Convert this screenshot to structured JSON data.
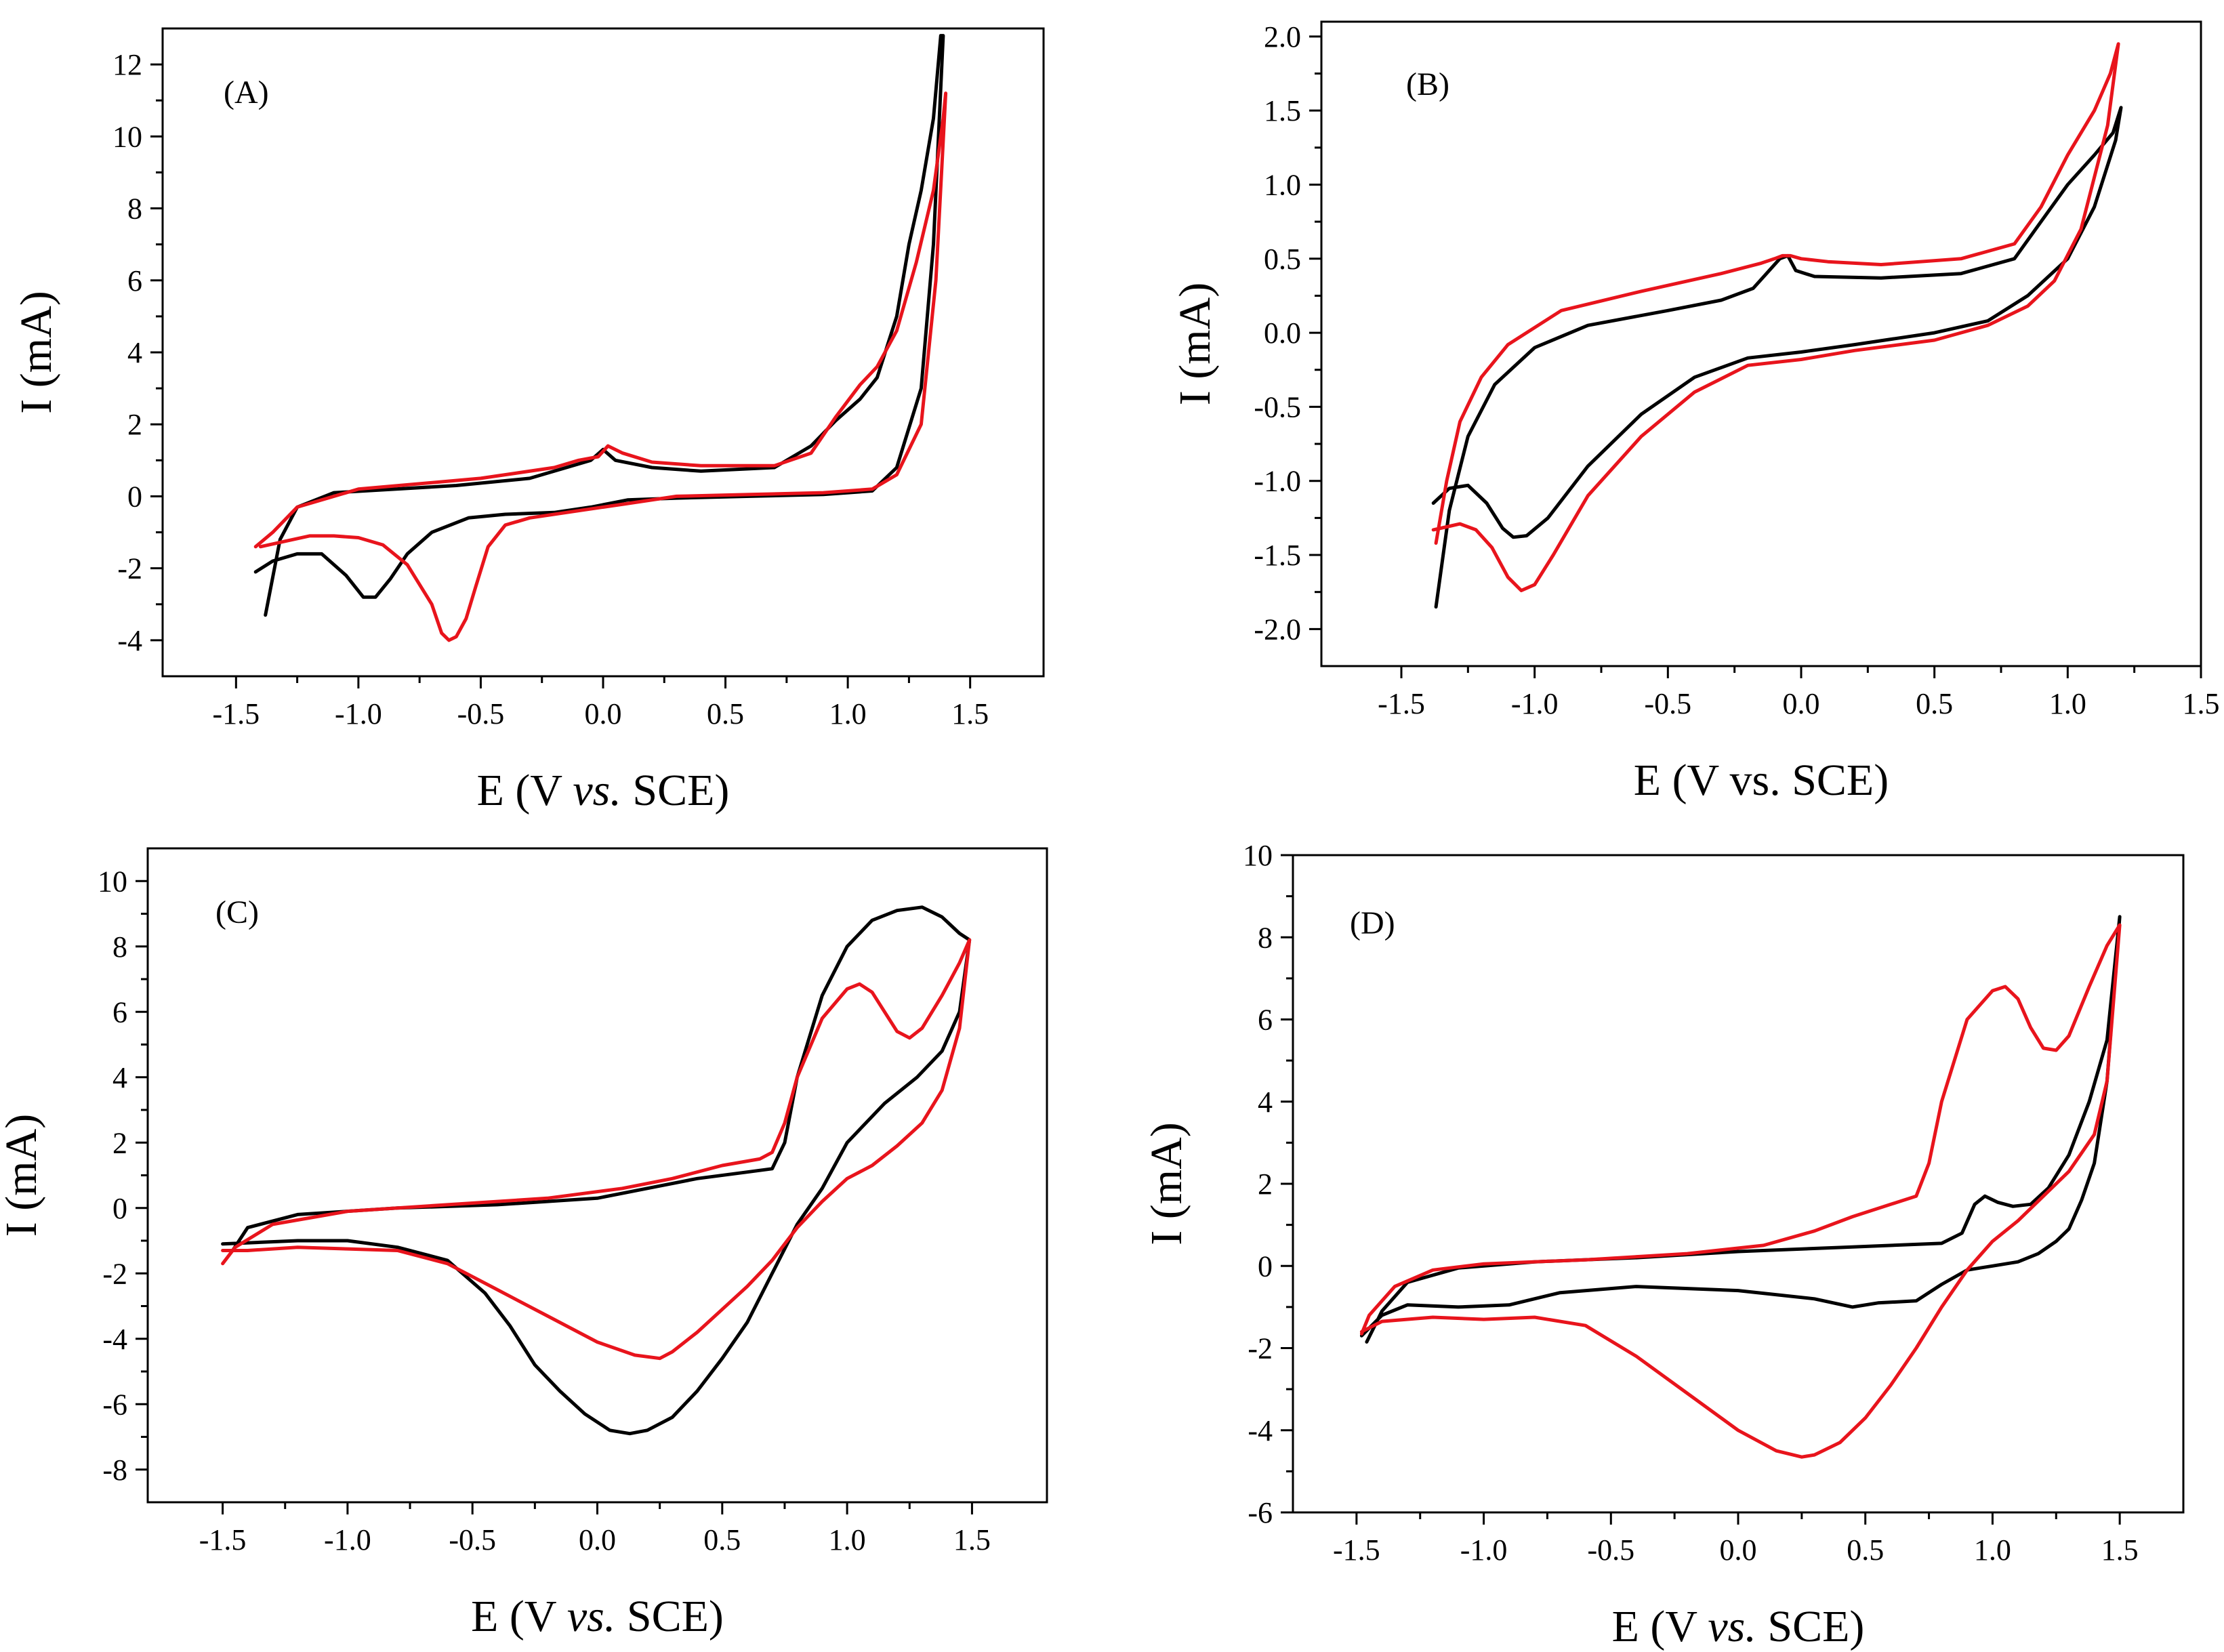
{
  "figure": {
    "colors": {
      "black": "#000000",
      "red": "#e8141c"
    }
  },
  "chart_data": [
    {
      "type": "line",
      "panel_label": "(A)",
      "xlabel_prefix": "E (V ",
      "xlabel_italic": "vs.",
      "xlabel_suffix": " SCE)",
      "ylabel": "I (mA)",
      "xlim": [
        -1.8,
        1.8
      ],
      "ylim": [
        -5,
        13
      ],
      "xticks": [
        -1.5,
        -1.0,
        -0.5,
        0.0,
        0.5,
        1.0,
        1.5
      ],
      "xtick_labels": [
        "-1.5",
        "-1.0",
        "-0.5",
        "0.0",
        "0.5",
        "1.0",
        "1.5"
      ],
      "yticks": [
        -4,
        -2,
        0,
        2,
        4,
        6,
        8,
        10,
        12
      ],
      "ytick_labels": [
        "-4",
        "-2",
        "0",
        "2",
        "4",
        "6",
        "8",
        "10",
        "12"
      ],
      "series": [
        {
          "name": "black",
          "color": "#000000",
          "x": [
            -1.38,
            -1.32,
            -1.25,
            -1.1,
            -0.6,
            -0.3,
            -0.15,
            -0.05,
            0.0,
            0.05,
            0.2,
            0.4,
            0.7,
            0.85,
            0.95,
            1.05,
            1.12,
            1.2,
            1.25,
            1.3,
            1.35,
            1.38,
            1.39,
            1.35,
            1.3,
            1.2,
            1.1,
            0.9,
            0.6,
            0.3,
            0.1,
            -0.05,
            -0.2,
            -0.4,
            -0.55,
            -0.7,
            -0.8,
            -0.87,
            -0.93,
            -0.98,
            -1.05,
            -1.15,
            -1.25,
            -1.35,
            -1.42
          ],
          "y": [
            -3.3,
            -1.2,
            -0.3,
            0.1,
            0.3,
            0.5,
            0.8,
            1.0,
            1.3,
            1.0,
            0.8,
            0.7,
            0.8,
            1.4,
            2.1,
            2.7,
            3.3,
            5.0,
            7.0,
            8.5,
            10.5,
            12.8,
            12.8,
            7.0,
            3.0,
            0.8,
            0.15,
            0.05,
            0.0,
            -0.05,
            -0.1,
            -0.3,
            -0.45,
            -0.5,
            -0.6,
            -1.0,
            -1.6,
            -2.3,
            -2.8,
            -2.8,
            -2.2,
            -1.6,
            -1.6,
            -1.8,
            -2.1
          ]
        },
        {
          "name": "red",
          "color": "#e8141c",
          "x": [
            -1.42,
            -1.35,
            -1.25,
            -1.0,
            -0.5,
            -0.2,
            -0.1,
            -0.02,
            0.02,
            0.08,
            0.2,
            0.4,
            0.7,
            0.85,
            0.95,
            1.05,
            1.12,
            1.2,
            1.28,
            1.35,
            1.39,
            1.4,
            1.36,
            1.3,
            1.2,
            1.1,
            0.9,
            0.6,
            0.3,
            0.1,
            -0.1,
            -0.3,
            -0.4,
            -0.47,
            -0.52,
            -0.56,
            -0.6,
            -0.63,
            -0.66,
            -0.7,
            -0.8,
            -0.9,
            -1.0,
            -1.1,
            -1.2,
            -1.3,
            -1.4
          ],
          "y": [
            -1.4,
            -1.0,
            -0.3,
            0.2,
            0.5,
            0.8,
            1.0,
            1.1,
            1.4,
            1.2,
            0.95,
            0.85,
            0.85,
            1.2,
            2.2,
            3.1,
            3.6,
            4.6,
            6.5,
            8.5,
            10.5,
            11.2,
            6.0,
            2.0,
            0.6,
            0.2,
            0.1,
            0.05,
            0.0,
            -0.2,
            -0.4,
            -0.6,
            -0.8,
            -1.4,
            -2.5,
            -3.4,
            -3.9,
            -4.0,
            -3.8,
            -3.0,
            -1.9,
            -1.35,
            -1.15,
            -1.1,
            -1.1,
            -1.25,
            -1.4
          ]
        }
      ]
    },
    {
      "type": "line",
      "panel_label": "(B)",
      "xlabel_prefix": "E (V vs. SCE)",
      "xlabel_italic": "",
      "xlabel_suffix": "",
      "ylabel": "I (mA)",
      "xlim": [
        -1.8,
        1.5
      ],
      "ylim": [
        -2.25,
        2.1
      ],
      "xticks": [
        -1.5,
        -1.0,
        -0.5,
        0.0,
        0.5,
        1.0,
        1.5
      ],
      "xtick_labels": [
        "-1.5",
        "-1.0",
        "-0.5",
        "0.0",
        "0.5",
        "1.0",
        "1.5"
      ],
      "yticks": [
        -2.0,
        -1.5,
        -1.0,
        -0.5,
        0.0,
        0.5,
        1.0,
        1.5,
        2.0
      ],
      "ytick_labels": [
        "-2.0",
        "-1.5",
        "-1.0",
        "-0.5",
        "0.0",
        "0.5",
        "1.0",
        "1.5",
        "2.0"
      ],
      "series": [
        {
          "name": "black",
          "color": "#000000",
          "x": [
            -1.37,
            -1.32,
            -1.25,
            -1.15,
            -1.0,
            -0.8,
            -0.5,
            -0.3,
            -0.18,
            -0.12,
            -0.08,
            -0.05,
            -0.02,
            0.05,
            0.3,
            0.6,
            0.8,
            0.9,
            1.0,
            1.1,
            1.17,
            1.2,
            1.18,
            1.1,
            1.0,
            0.85,
            0.7,
            0.5,
            0.2,
            0.0,
            -0.2,
            -0.4,
            -0.6,
            -0.8,
            -0.95,
            -1.03,
            -1.08,
            -1.12,
            -1.18,
            -1.25,
            -1.32,
            -1.38
          ],
          "y": [
            -1.85,
            -1.2,
            -0.7,
            -0.35,
            -0.1,
            0.05,
            0.15,
            0.22,
            0.3,
            0.42,
            0.5,
            0.52,
            0.42,
            0.38,
            0.37,
            0.4,
            0.5,
            0.75,
            1.0,
            1.2,
            1.35,
            1.52,
            1.3,
            0.85,
            0.5,
            0.25,
            0.08,
            0.0,
            -0.08,
            -0.13,
            -0.17,
            -0.3,
            -0.55,
            -0.9,
            -1.25,
            -1.37,
            -1.38,
            -1.32,
            -1.15,
            -1.03,
            -1.05,
            -1.15
          ]
        },
        {
          "name": "red",
          "color": "#e8141c",
          "x": [
            -1.37,
            -1.33,
            -1.28,
            -1.2,
            -1.1,
            -0.9,
            -0.6,
            -0.3,
            -0.15,
            -0.1,
            -0.07,
            -0.04,
            0.0,
            0.1,
            0.3,
            0.6,
            0.8,
            0.9,
            1.0,
            1.1,
            1.16,
            1.19,
            1.15,
            1.05,
            0.95,
            0.85,
            0.7,
            0.5,
            0.2,
            0.0,
            -0.2,
            -0.4,
            -0.6,
            -0.8,
            -0.93,
            -1.0,
            -1.05,
            -1.1,
            -1.16,
            -1.22,
            -1.28,
            -1.33,
            -1.38
          ],
          "y": [
            -1.42,
            -1.0,
            -0.6,
            -0.3,
            -0.08,
            0.15,
            0.28,
            0.4,
            0.47,
            0.5,
            0.52,
            0.52,
            0.5,
            0.48,
            0.46,
            0.5,
            0.6,
            0.85,
            1.2,
            1.5,
            1.75,
            1.95,
            1.4,
            0.7,
            0.35,
            0.18,
            0.05,
            -0.05,
            -0.12,
            -0.18,
            -0.22,
            -0.4,
            -0.7,
            -1.1,
            -1.5,
            -1.7,
            -1.74,
            -1.65,
            -1.45,
            -1.33,
            -1.29,
            -1.31,
            -1.33
          ]
        }
      ]
    },
    {
      "type": "line",
      "panel_label": "(C)",
      "xlabel_prefix": "E (V ",
      "xlabel_italic": "vs.",
      "xlabel_suffix": " SCE)",
      "ylabel": "I (mA)",
      "xlim": [
        -1.8,
        1.8
      ],
      "ylim": [
        -9,
        11
      ],
      "xticks": [
        -1.5,
        -1.0,
        -0.5,
        0.0,
        0.5,
        1.0,
        1.5
      ],
      "xtick_labels": [
        "-1.5",
        "-1.0",
        "-0.5",
        "0.0",
        "0.5",
        "1.0",
        "1.5"
      ],
      "yticks": [
        -8,
        -6,
        -4,
        -2,
        0,
        2,
        4,
        6,
        8,
        10
      ],
      "ytick_labels": [
        "-8",
        "-6",
        "-4",
        "-2",
        "0",
        "2",
        "4",
        "6",
        "8",
        "10"
      ],
      "series": [
        {
          "name": "black",
          "color": "#000000",
          "x": [
            -1.46,
            -1.4,
            -1.2,
            -0.8,
            -0.4,
            0.0,
            0.2,
            0.4,
            0.6,
            0.7,
            0.75,
            0.8,
            0.9,
            1.0,
            1.1,
            1.2,
            1.3,
            1.38,
            1.45,
            1.49,
            1.45,
            1.38,
            1.28,
            1.15,
            1.0,
            0.9,
            0.8,
            0.7,
            0.6,
            0.5,
            0.4,
            0.3,
            0.2,
            0.13,
            0.05,
            -0.05,
            -0.15,
            -0.25,
            -0.35,
            -0.45,
            -0.6,
            -0.8,
            -1.0,
            -1.2,
            -1.35,
            -1.5
          ],
          "y": [
            -1.3,
            -0.6,
            -0.2,
            0.0,
            0.1,
            0.3,
            0.6,
            0.9,
            1.1,
            1.2,
            2.0,
            4.0,
            6.5,
            8.0,
            8.8,
            9.1,
            9.2,
            8.9,
            8.4,
            8.2,
            6.0,
            4.8,
            4.0,
            3.2,
            2.0,
            0.6,
            -0.5,
            -2.0,
            -3.5,
            -4.6,
            -5.6,
            -6.4,
            -6.8,
            -6.9,
            -6.8,
            -6.3,
            -5.6,
            -4.8,
            -3.6,
            -2.6,
            -1.6,
            -1.2,
            -1.0,
            -1.0,
            -1.05,
            -1.1
          ]
        },
        {
          "name": "red",
          "color": "#e8141c",
          "x": [
            -1.5,
            -1.45,
            -1.3,
            -1.0,
            -0.6,
            -0.2,
            0.1,
            0.3,
            0.5,
            0.65,
            0.7,
            0.75,
            0.8,
            0.9,
            1.0,
            1.05,
            1.1,
            1.15,
            1.2,
            1.25,
            1.3,
            1.38,
            1.45,
            1.49,
            1.45,
            1.38,
            1.3,
            1.2,
            1.1,
            1.0,
            0.9,
            0.8,
            0.7,
            0.6,
            0.5,
            0.4,
            0.3,
            0.25,
            0.15,
            0.0,
            -0.2,
            -0.4,
            -0.6,
            -0.8,
            -1.0,
            -1.2,
            -1.4,
            -1.5
          ],
          "y": [
            -1.7,
            -1.2,
            -0.5,
            -0.1,
            0.1,
            0.3,
            0.6,
            0.9,
            1.3,
            1.5,
            1.7,
            2.6,
            4.0,
            5.8,
            6.7,
            6.85,
            6.6,
            6.0,
            5.4,
            5.2,
            5.5,
            6.5,
            7.5,
            8.2,
            5.5,
            3.6,
            2.6,
            1.9,
            1.3,
            0.9,
            0.2,
            -0.6,
            -1.6,
            -2.4,
            -3.1,
            -3.8,
            -4.4,
            -4.6,
            -4.5,
            -4.1,
            -3.3,
            -2.5,
            -1.7,
            -1.3,
            -1.25,
            -1.2,
            -1.3,
            -1.3
          ]
        }
      ]
    },
    {
      "type": "line",
      "panel_label": "(D)",
      "xlabel_prefix": "E (V ",
      "xlabel_italic": "vs.",
      "xlabel_suffix": " SCE)",
      "ylabel": "I (mA)",
      "xlim": [
        -1.75,
        1.75
      ],
      "ylim": [
        -6,
        10
      ],
      "xticks": [
        -1.5,
        -1.0,
        -0.5,
        0.0,
        0.5,
        1.0,
        1.5
      ],
      "xtick_labels": [
        "-1.5",
        "-1.0",
        "-0.5",
        "0.0",
        "0.5",
        "1.0",
        "1.5"
      ],
      "yticks": [
        -6,
        -4,
        -2,
        0,
        2,
        4,
        6,
        8,
        10
      ],
      "ytick_labels": [
        "-6",
        "-4",
        "-2",
        "0",
        "2",
        "4",
        "6",
        "8",
        "10"
      ],
      "series": [
        {
          "name": "black",
          "color": "#000000",
          "x": [
            -1.46,
            -1.4,
            -1.3,
            -1.1,
            -0.8,
            -0.4,
            0.0,
            0.4,
            0.8,
            0.88,
            0.93,
            0.97,
            1.02,
            1.08,
            1.15,
            1.22,
            1.3,
            1.38,
            1.45,
            1.5,
            1.45,
            1.4,
            1.35,
            1.3,
            1.25,
            1.18,
            1.1,
            1.0,
            0.9,
            0.8,
            0.7,
            0.55,
            0.45,
            0.3,
            0.0,
            -0.4,
            -0.7,
            -0.9,
            -1.1,
            -1.3,
            -1.4,
            -1.48
          ],
          "y": [
            -1.85,
            -1.1,
            -0.4,
            -0.05,
            0.1,
            0.2,
            0.35,
            0.45,
            0.55,
            0.8,
            1.5,
            1.7,
            1.55,
            1.45,
            1.5,
            1.9,
            2.7,
            4.0,
            5.5,
            8.5,
            4.5,
            2.5,
            1.6,
            0.9,
            0.6,
            0.3,
            0.1,
            0.0,
            -0.1,
            -0.45,
            -0.85,
            -0.9,
            -1.0,
            -0.8,
            -0.6,
            -0.5,
            -0.65,
            -0.95,
            -1.0,
            -0.95,
            -1.2,
            -1.7
          ]
        },
        {
          "name": "red",
          "color": "#e8141c",
          "x": [
            -1.48,
            -1.45,
            -1.35,
            -1.2,
            -1.0,
            -0.6,
            -0.2,
            0.1,
            0.3,
            0.45,
            0.6,
            0.7,
            0.75,
            0.8,
            0.9,
            1.0,
            1.05,
            1.1,
            1.15,
            1.2,
            1.25,
            1.3,
            1.38,
            1.45,
            1.5,
            1.45,
            1.4,
            1.3,
            1.2,
            1.1,
            1.0,
            0.9,
            0.8,
            0.7,
            0.6,
            0.5,
            0.4,
            0.3,
            0.25,
            0.15,
            0.0,
            -0.2,
            -0.4,
            -0.6,
            -0.8,
            -1.0,
            -1.2,
            -1.4,
            -1.48
          ],
          "y": [
            -1.65,
            -1.2,
            -0.5,
            -0.1,
            0.05,
            0.15,
            0.3,
            0.5,
            0.85,
            1.2,
            1.5,
            1.7,
            2.5,
            4.0,
            6.0,
            6.7,
            6.8,
            6.5,
            5.8,
            5.3,
            5.25,
            5.6,
            6.8,
            7.8,
            8.3,
            4.5,
            3.2,
            2.3,
            1.7,
            1.1,
            0.6,
            -0.1,
            -1.0,
            -2.0,
            -2.9,
            -3.7,
            -4.3,
            -4.6,
            -4.65,
            -4.5,
            -4.0,
            -3.1,
            -2.2,
            -1.45,
            -1.25,
            -1.3,
            -1.25,
            -1.35,
            -1.6
          ]
        }
      ]
    }
  ]
}
